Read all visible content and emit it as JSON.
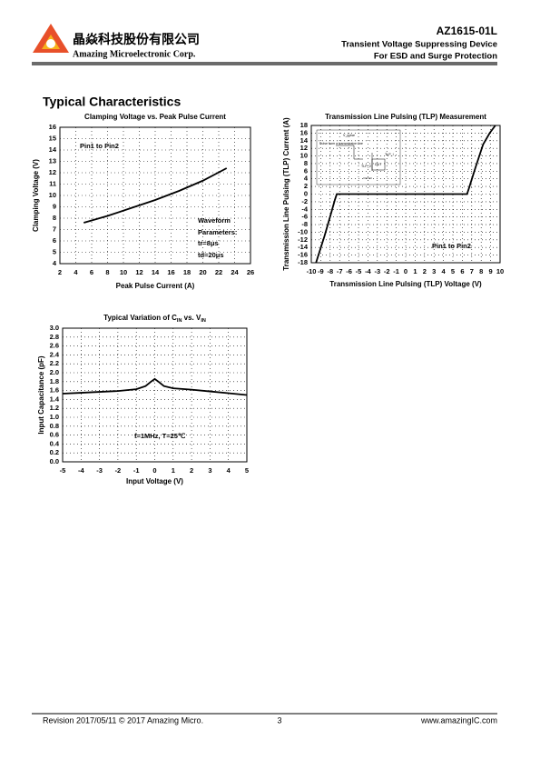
{
  "header": {
    "company_cn": "晶焱科技股份有限公司",
    "company_en": "Amazing Microelectronic Corp.",
    "part": "AZ1615-01L",
    "line1": "Transient Voltage Suppressing Device",
    "line2": "For ESD and Surge Protection"
  },
  "section_title": "Typical Characteristics",
  "chart_data": [
    {
      "type": "line",
      "title": "Clamping Voltage vs. Peak Pulse Current",
      "x_label": "Peak Pulse Current (A)",
      "y_label": "Clamping Voltage (V)",
      "x": [
        5,
        8,
        11,
        14,
        17,
        20,
        23
      ],
      "values": [
        7.6,
        8.2,
        8.9,
        9.6,
        10.4,
        11.3,
        12.4
      ],
      "color": "#000000",
      "xlim": [
        2,
        26
      ],
      "xticks": [
        2,
        4,
        6,
        8,
        10,
        12,
        14,
        16,
        18,
        20,
        22,
        24,
        26
      ],
      "ylim": [
        4,
        16
      ],
      "yticks": [
        4,
        5,
        6,
        7,
        8,
        9,
        10,
        11,
        12,
        13,
        14,
        15,
        16
      ],
      "grid": true,
      "annotations": [
        "Pin1 to Pin2",
        "Waveform",
        "Parameters:",
        "tr=8μs",
        "td=20μs"
      ]
    },
    {
      "type": "line",
      "title": "Transmission Line Pulsing (TLP) Measurement",
      "x_label": "Transmission Line Pulsing (TLP) Voltage (V)",
      "y_label": "Transmission Line Pulsing (TLP) Current (A)",
      "x": [
        -9.5,
        -8.6,
        -7.9,
        -7.5,
        -7.3,
        6.5,
        6.7,
        7.4,
        8.2,
        8.9,
        9.5
      ],
      "values": [
        -18,
        -11,
        -5,
        -1.5,
        0,
        0,
        1.5,
        7,
        13,
        16,
        18
      ],
      "color": "#000000",
      "xlim": [
        -10,
        10
      ],
      "xticks": [
        -10,
        -9,
        -8,
        -7,
        -6,
        -5,
        -4,
        -3,
        -2,
        -1,
        0,
        1,
        2,
        3,
        4,
        5,
        6,
        7,
        8,
        9,
        10
      ],
      "ylim": [
        -18,
        18
      ],
      "yticks": [
        -18,
        -16,
        -14,
        -12,
        -10,
        -8,
        -6,
        -4,
        -2,
        0,
        2,
        4,
        6,
        8,
        10,
        12,
        14,
        16,
        18
      ],
      "grid": true,
      "annotations": [
        "Pin1 to Pin2"
      ],
      "inset_labels": [
        "V_pulse",
        "Pulse from a transmission line",
        "TLP_I",
        "TLP_V",
        "DUT"
      ]
    },
    {
      "type": "line",
      "title": [
        "Typical Variation of C",
        "IN",
        " vs. V",
        "IN"
      ],
      "x_label": "Input Voltage (V)",
      "y_label": "Input Capacitance (pF)",
      "x": [
        -5,
        -4,
        -3,
        -2,
        -1,
        -0.5,
        -0.2,
        0,
        0.2,
        0.5,
        1,
        2,
        3,
        4,
        5
      ],
      "values": [
        1.53,
        1.55,
        1.57,
        1.59,
        1.63,
        1.7,
        1.8,
        1.86,
        1.8,
        1.7,
        1.65,
        1.62,
        1.58,
        1.54,
        1.5
      ],
      "color": "#000000",
      "xlim": [
        -5,
        5
      ],
      "xticks": [
        -5,
        -4,
        -3,
        -2,
        -1,
        0,
        1,
        2,
        3,
        4,
        5
      ],
      "ylim": [
        0,
        3
      ],
      "yticks": [
        {
          "value": 0,
          "label": "0.0"
        },
        0.2,
        0.4,
        0.6,
        0.8,
        {
          "value": 1,
          "label": "1.0"
        },
        1.2,
        1.4,
        1.6,
        1.8,
        {
          "value": 2,
          "label": "2.0"
        },
        2.2,
        2.4,
        2.6,
        2.8,
        {
          "value": 3,
          "label": "3.0"
        }
      ],
      "grid": true,
      "annotations": [
        "f=1MHz, T=25℃"
      ]
    }
  ],
  "footer": {
    "revision": "Revision 2017/05/11 © 2017 Amazing Micro.",
    "page": "3",
    "website": "www.amazingIC.com"
  }
}
